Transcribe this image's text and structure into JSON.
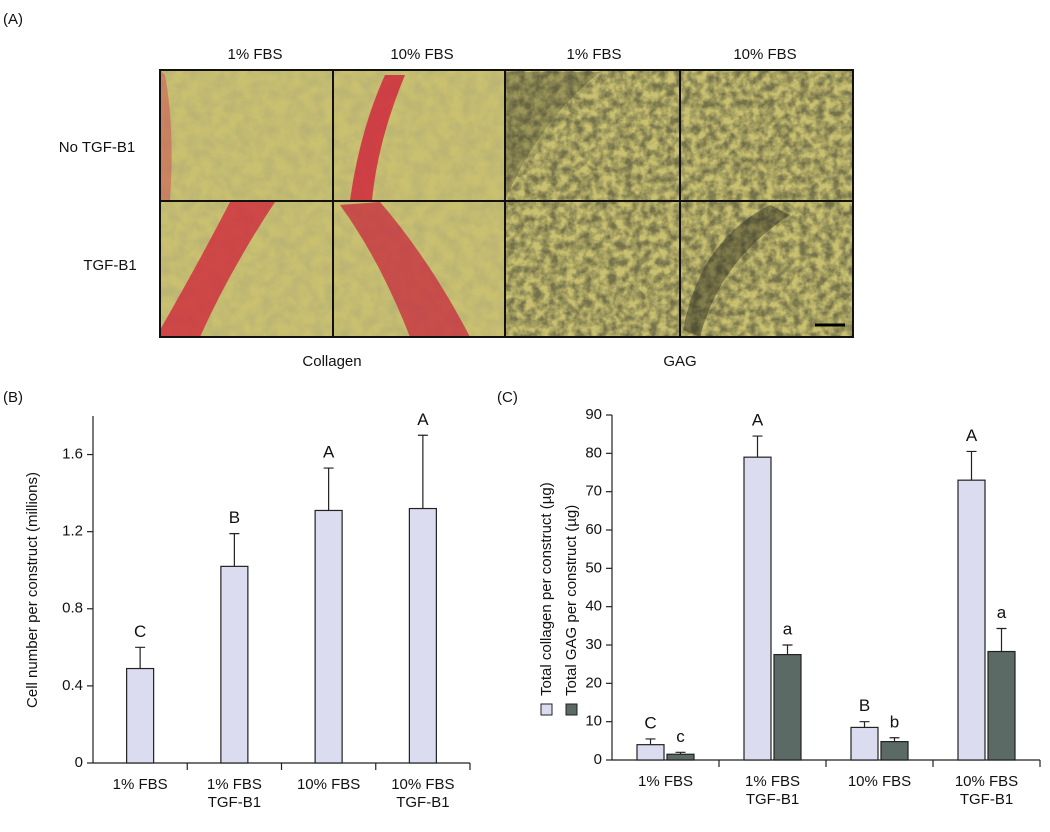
{
  "panel_a": {
    "label": "(A)",
    "columns": [
      "1% FBS",
      "10% FBS",
      "1% FBS",
      "10% FBS"
    ],
    "rows": [
      "No TGF-B1",
      "TGF-B1"
    ],
    "stains": [
      "Collagen",
      "GAG"
    ]
  },
  "chart_data": [
    {
      "type": "bar",
      "panel": "(B)",
      "ylabel": "Cell number per construct (millions)",
      "categories": [
        "1% FBS",
        "1% FBS\nTGF-B1",
        "10% FBS",
        "10% FBS\nTGF-B1"
      ],
      "series": [
        {
          "color": "#dcdcf0",
          "values": [
            0.49,
            1.02,
            1.31,
            1.32
          ],
          "errors": [
            0.11,
            0.17,
            0.22,
            0.38
          ],
          "letters": [
            "C",
            "B",
            "A",
            "A"
          ]
        }
      ],
      "ylim": [
        0,
        1.8
      ],
      "yticks": [
        0,
        0.4,
        0.8,
        1.2,
        1.6
      ]
    },
    {
      "type": "bar",
      "panel": "(C)",
      "categories": [
        "1% FBS",
        "1% FBS\nTGF-B1",
        "10% FBS",
        "10% FBS\nTGF-B1"
      ],
      "series": [
        {
          "name": "Total collagen per construct  (µg)",
          "color": "#dcdcf0",
          "values": [
            4,
            79,
            8.5,
            73
          ],
          "errors": [
            1.5,
            5.5,
            1.5,
            7.5
          ],
          "letters": [
            "C",
            "A",
            "B",
            "A"
          ]
        },
        {
          "name": "Total GAG per construct  (µg)",
          "color": "#5b6a64",
          "values": [
            1.5,
            27.5,
            4.8,
            28.3
          ],
          "errors": [
            0.5,
            2.5,
            1,
            6
          ],
          "letters": [
            "c",
            "a",
            "b",
            "a"
          ]
        }
      ],
      "ylim": [
        0,
        90
      ],
      "yticks": [
        0,
        10,
        20,
        30,
        40,
        50,
        60,
        70,
        80,
        90
      ]
    }
  ]
}
